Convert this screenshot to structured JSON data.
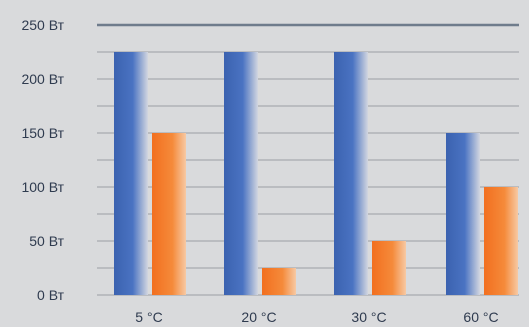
{
  "chart_data": {
    "type": "bar",
    "title": "",
    "xlabel": "",
    "ylabel": "",
    "categories": [
      "5 °C",
      "20 °C",
      "30 °C",
      "60 °C"
    ],
    "series": [
      {
        "values": [
          225,
          225,
          225,
          150
        ],
        "color": "#3f67b5"
      },
      {
        "values": [
          150,
          25,
          50,
          100
        ],
        "color": "#f07a2a"
      }
    ],
    "ylim": [
      0,
      250
    ],
    "y_ticks": [
      0,
      50,
      100,
      150,
      200,
      250
    ],
    "y_tick_labels": [
      "0 Вт",
      "50 Вт",
      "100 Вт",
      "150 Вт",
      "200 Вт",
      "250 Вт"
    ],
    "minor_gridlines": true,
    "grid": true,
    "legend": "none"
  }
}
